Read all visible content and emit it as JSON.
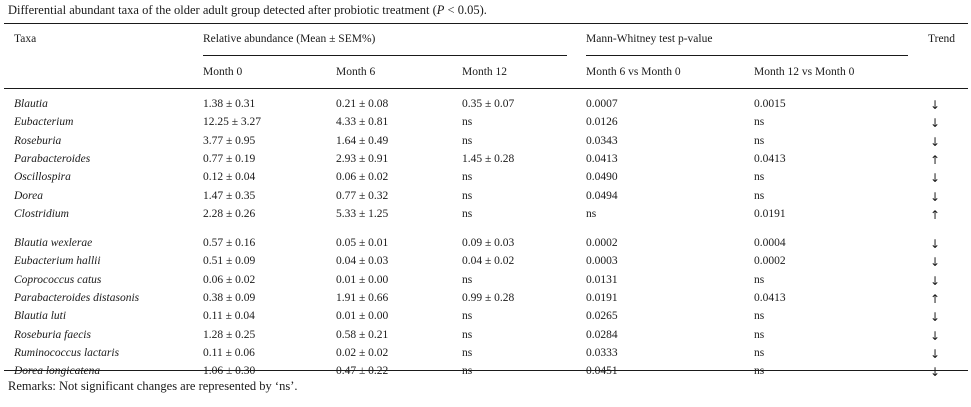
{
  "caption": {
    "prefix": "Differential abundant taxa of the older adult group detected after probiotic treatment (",
    "italic": "P",
    "suffix": " < 0.05)."
  },
  "headers": {
    "taxa": "Taxa",
    "relative_abundance": "Relative abundance (Mean ± SEM%)",
    "mann_whitney": "Mann-Whitney test p-value",
    "trend": "Trend",
    "month0": "Month 0",
    "month6": "Month 6",
    "month12": "Month 12",
    "m6_vs_m0": "Month 6 vs Month 0",
    "m12_vs_m0": "Month 12 vs Month 0"
  },
  "rows": [
    {
      "taxon": "Blautia",
      "m0": "1.38 ± 0.31",
      "m6": "0.21 ± 0.08",
      "m12": "0.35 ± 0.07",
      "p6": "0.0007",
      "p12": "0.0015",
      "trend": "↓"
    },
    {
      "taxon": "Eubacterium",
      "m0": "12.25 ± 3.27",
      "m6": "4.33 ± 0.81",
      "m12": "ns",
      "p6": "0.0126",
      "p12": "ns",
      "trend": "↓"
    },
    {
      "taxon": "Roseburia",
      "m0": "3.77 ± 0.95",
      "m6": "1.64 ± 0.49",
      "m12": "ns",
      "p6": "0.0343",
      "p12": "ns",
      "trend": "↓"
    },
    {
      "taxon": "Parabacteroides",
      "m0": "0.77 ± 0.19",
      "m6": "2.93 ± 0.91",
      "m12": "1.45 ± 0.28",
      "p6": "0.0413",
      "p12": "0.0413",
      "trend": "↑"
    },
    {
      "taxon": "Oscillospira",
      "m0": "0.12 ± 0.04",
      "m6": "0.06 ± 0.02",
      "m12": "ns",
      "p6": "0.0490",
      "p12": "ns",
      "trend": "↓"
    },
    {
      "taxon": "Dorea",
      "m0": "1.47 ± 0.35",
      "m6": "0.77 ± 0.32",
      "m12": "ns",
      "p6": "0.0494",
      "p12": "ns",
      "trend": "↓"
    },
    {
      "taxon": "Clostridium",
      "m0": "2.28 ± 0.26",
      "m6": "5.33 ± 1.25",
      "m12": "ns",
      "p6": "ns",
      "p12": "0.0191",
      "trend": "↑"
    },
    {
      "taxon": "Blautia wexlerae",
      "m0": "0.57 ± 0.16",
      "m6": "0.05 ± 0.01",
      "m12": "0.09 ± 0.03",
      "p6": "0.0002",
      "p12": "0.0004",
      "trend": "↓"
    },
    {
      "taxon": "Eubacterium hallii",
      "m0": "0.51 ± 0.09",
      "m6": "0.04 ± 0.03",
      "m12": "0.04 ± 0.02",
      "p6": "0.0003",
      "p12": "0.0002",
      "trend": "↓"
    },
    {
      "taxon": "Coprococcus catus",
      "m0": "0.06 ± 0.02",
      "m6": "0.01 ± 0.00",
      "m12": "ns",
      "p6": "0.0131",
      "p12": "ns",
      "trend": "↓"
    },
    {
      "taxon": "Parabacteroides distasonis",
      "m0": "0.38 ± 0.09",
      "m6": "1.91 ± 0.66",
      "m12": "0.99 ± 0.28",
      "p6": "0.0191",
      "p12": "0.0413",
      "trend": "↑"
    },
    {
      "taxon": "Blautia luti",
      "m0": "0.11 ± 0.04",
      "m6": "0.01 ± 0.00",
      "m12": "ns",
      "p6": "0.0265",
      "p12": "ns",
      "trend": "↓"
    },
    {
      "taxon": "Roseburia faecis",
      "m0": "1.28 ± 0.25",
      "m6": "0.58 ± 0.21",
      "m12": "ns",
      "p6": "0.0284",
      "p12": "ns",
      "trend": "↓"
    },
    {
      "taxon": "Ruminococcus lactaris",
      "m0": "0.11 ± 0.06",
      "m6": "0.02 ± 0.02",
      "m12": "ns",
      "p6": "0.0333",
      "p12": "ns",
      "trend": "↓"
    },
    {
      "taxon": "Dorea longicatena",
      "m0": "1.06 ± 0.30",
      "m6": "0.47 ± 0.22",
      "m12": "ns",
      "p6": "0.0451",
      "p12": "ns",
      "trend": "↓"
    }
  ],
  "remarks": "Remarks: Not significant changes are represented by ‘ns’."
}
